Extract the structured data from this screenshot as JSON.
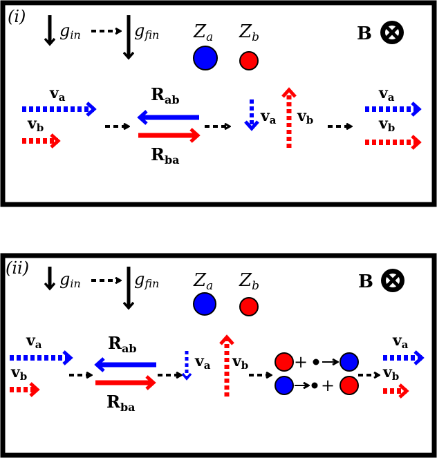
{
  "panels": [
    {
      "label": "(i)",
      "g_in": "g",
      "g_in_sub": "in",
      "g_fin": "g",
      "g_fin_sub": "fin",
      "Za": "Z",
      "Za_sub": "a",
      "Zb": "Z",
      "Zb_sub": "b",
      "B_label": "B",
      "va": "v",
      "va_sub": "a",
      "vb": "v",
      "vb_sub": "b",
      "Rab": "R",
      "Rab_sub": "ab",
      "Rba": "R",
      "Rba_sub": "ba"
    },
    {
      "label": "(ii)",
      "g_in": "g",
      "g_in_sub": "in",
      "g_fin": "g",
      "g_fin_sub": "fin",
      "Za": "Z",
      "Za_sub": "a",
      "Zb": "Z",
      "Zb_sub": "b",
      "B_label": "B",
      "va": "v",
      "va_sub": "a",
      "vb": "v",
      "vb_sub": "b",
      "Rab": "R",
      "Rab_sub": "ab",
      "Rba": "R",
      "Rba_sub": "ba",
      "plus": "+"
    }
  ],
  "colors": {
    "species_a": "#0000ff",
    "species_b": "#ff0000",
    "ink": "#000000"
  }
}
